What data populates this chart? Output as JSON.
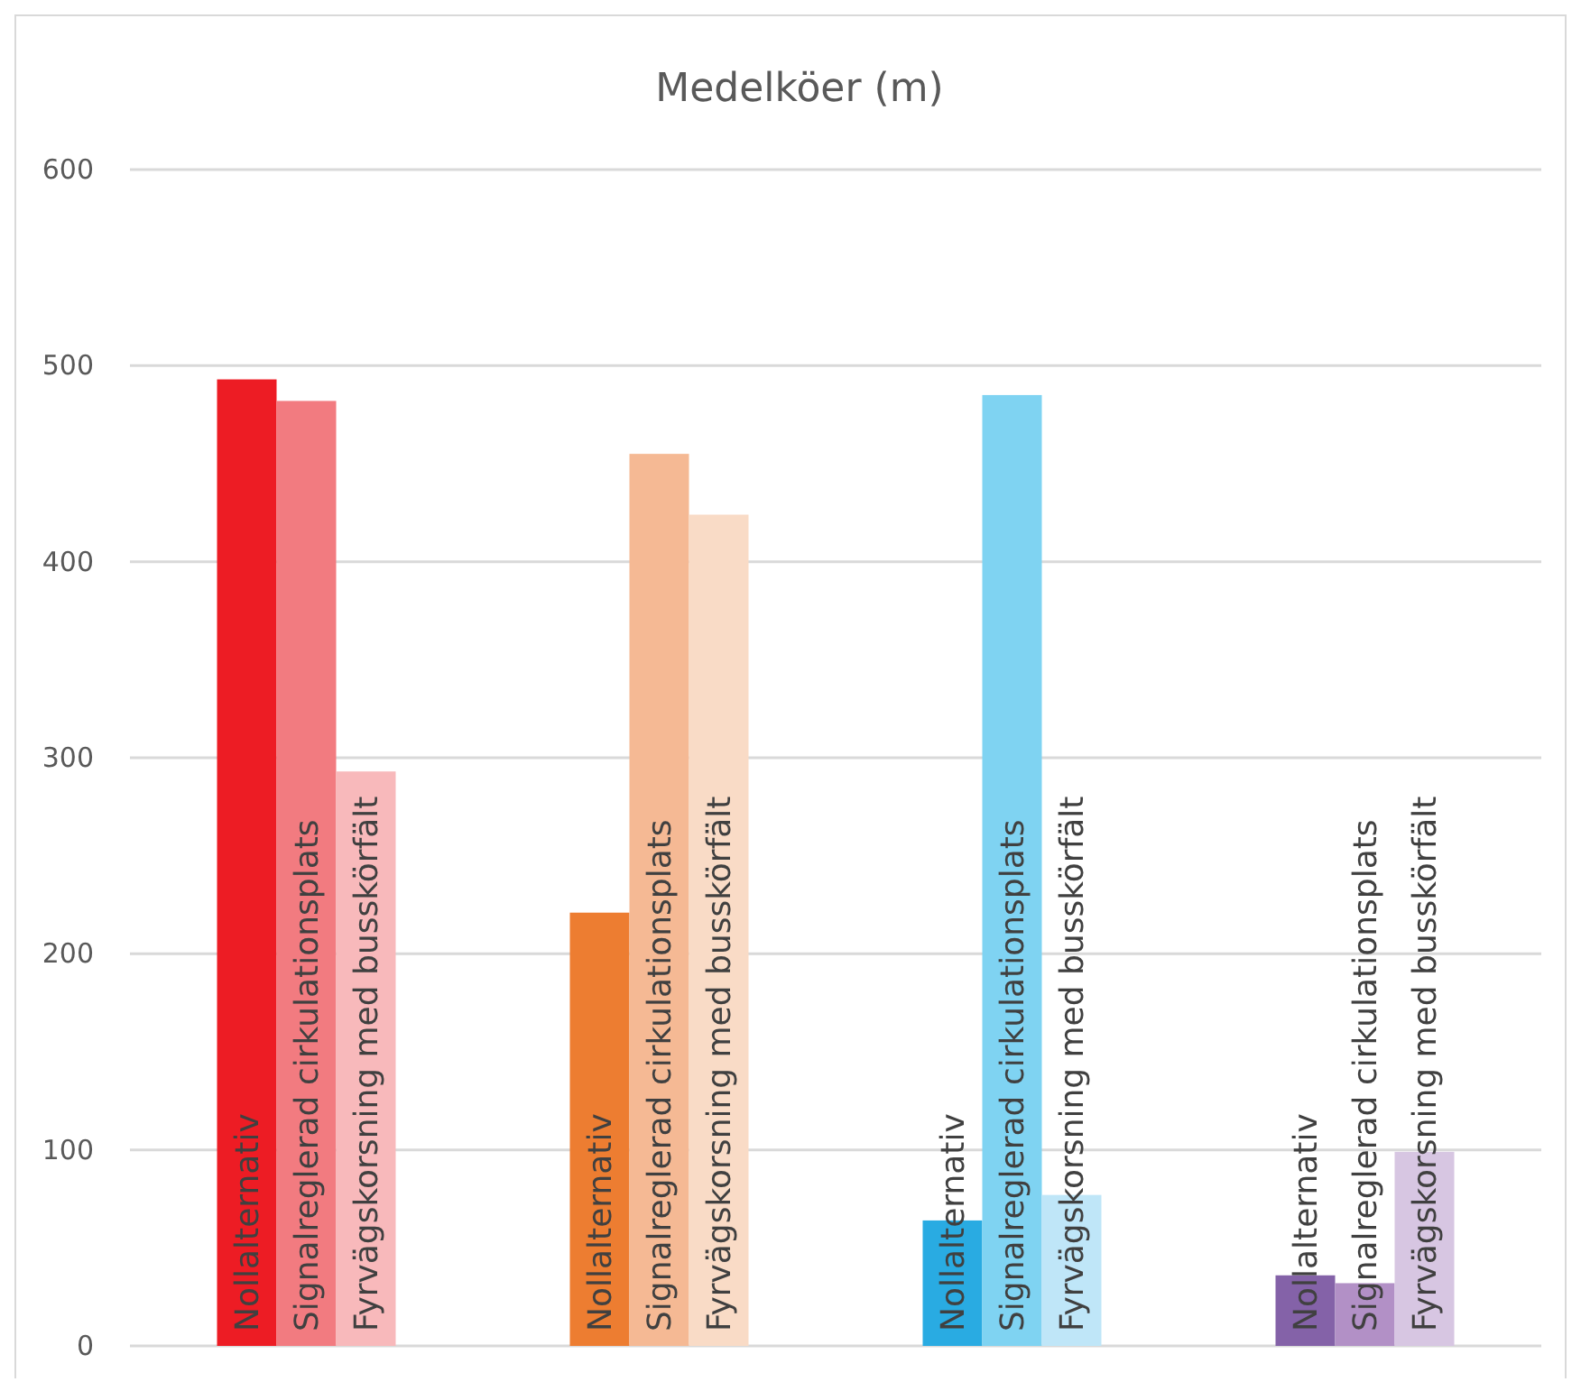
{
  "chart_data": {
    "type": "bar",
    "title": "Medelköer (m)",
    "categories": [
      null,
      null,
      null,
      null
    ],
    "series": [
      {
        "name": "Nollalternativ",
        "colors": [
          "#ed1c24",
          "#ed7d31",
          "#29abe2",
          "#8462a8"
        ],
        "values": [
          493,
          221,
          64,
          36
        ]
      },
      {
        "name": "Signalreglerad cirkulationsplats",
        "colors": [
          "#f27b80",
          "#f5b994",
          "#7fd3f2",
          "#b290c6"
        ],
        "values": [
          482,
          455,
          485,
          32
        ]
      },
      {
        "name": "Fyrvägskorsning med busskörfält",
        "colors": [
          "#f8b9bb",
          "#f9dbc6",
          "#bfe6f8",
          "#d7c6e2"
        ],
        "values": [
          293,
          424,
          77,
          99
        ]
      }
    ],
    "ylim": [
      0,
      600
    ],
    "yticks": [
      0,
      100,
      200,
      300,
      400,
      500,
      600
    ],
    "grid": "y"
  }
}
